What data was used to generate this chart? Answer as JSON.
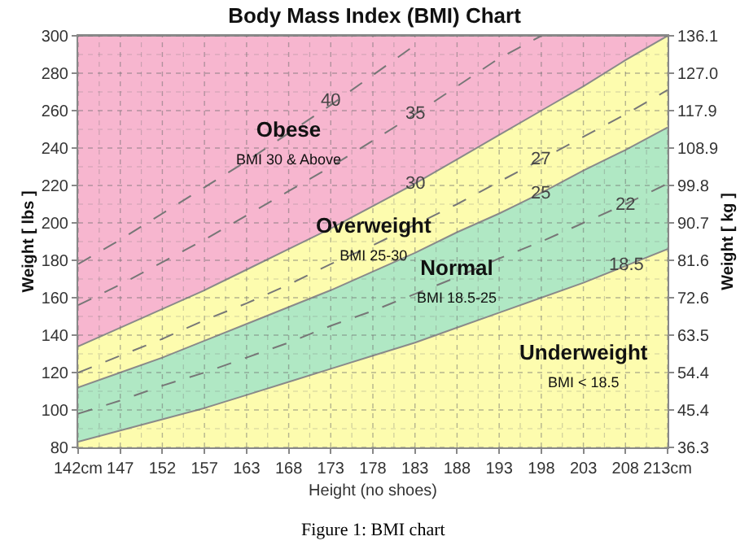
{
  "chart_data": {
    "type": "area",
    "title": "Body Mass Index (BMI) Chart",
    "xlabel": "Height (no shoes)",
    "ylabel": "Weight [ lbs ]",
    "y2label": "Weight [ kg ]",
    "categories": [
      "142cm",
      "147",
      "152",
      "157",
      "163",
      "168",
      "173",
      "178",
      "183",
      "188",
      "193",
      "198",
      "203",
      "208",
      "213cm"
    ],
    "series": [
      {
        "type": "area",
        "name": "Underweight\nBMI < 18.5",
        "color": "#fdfcae",
        "values": [
          83,
          89,
          95,
          101,
          108,
          115,
          122,
          129,
          136,
          144,
          152,
          160,
          168,
          177,
          186
        ]
      },
      {
        "type": "area",
        "name": "Normal\nBMI 18.5-25",
        "color": "#b0e8c4",
        "values": [
          112,
          120,
          128,
          137,
          146,
          155,
          164,
          174,
          184,
          195,
          205,
          216,
          228,
          239,
          251
        ]
      },
      {
        "type": "area",
        "name": "Overweight\nBMI 25-30",
        "color": "#fdfcae",
        "values": [
          134,
          144,
          154,
          164,
          175,
          186,
          197,
          209,
          221,
          234,
          247,
          260,
          273,
          287,
          300
        ]
      },
      {
        "type": "area",
        "name": "Obese\nBMI 30 & Above",
        "color": "#f7b6cf",
        "values": [
          300,
          300,
          300,
          300,
          300,
          300,
          300,
          300,
          300,
          300,
          300,
          300,
          300,
          300,
          300
        ]
      },
      {
        "type": "line",
        "color": "#777777",
        "line_style": "dashed",
        "values": [
          98,
          105,
          113,
          120,
          128,
          136,
          145,
          153,
          162,
          171,
          181,
          190,
          200,
          210,
          221
        ]
      },
      {
        "type": "line",
        "color": "#777777",
        "line_style": "dashed",
        "values": [
          120,
          129,
          138,
          148,
          157,
          167,
          178,
          188,
          199,
          210,
          222,
          234,
          246,
          258,
          271
        ]
      },
      {
        "type": "line",
        "color": "#777777",
        "line_style": "dashed",
        "values": [
          156,
          167,
          179,
          191,
          204,
          217,
          230,
          244,
          258,
          273,
          288,
          300,
          null,
          null,
          null
        ]
      },
      {
        "type": "line",
        "color": "#777777",
        "line_style": "dashed",
        "values": [
          178,
          191,
          205,
          219,
          233,
          248,
          263,
          279,
          295,
          null,
          null,
          null,
          null,
          null,
          null
        ]
      }
    ],
    "ylim": [
      80,
      300
    ],
    "yticks": [
      80,
      100,
      120,
      140,
      160,
      180,
      200,
      220,
      240,
      260,
      280,
      300
    ],
    "y2lim": [
      36.3,
      136.1
    ],
    "y2ticks": [
      36.3,
      45.4,
      54.4,
      63.5,
      72.6,
      81.6,
      90.7,
      99.8,
      108.9,
      117.9,
      {
        "value": 127,
        "label": "127.0"
      },
      136.1
    ],
    "grid": true,
    "legend": false,
    "marker": "none",
    "annotations": [
      {
        "text": "40",
        "x": "173",
        "y": 265
      },
      {
        "text": "35",
        "x": "183",
        "y": 258
      },
      {
        "text": "30",
        "x": "183",
        "y": 221
      },
      {
        "text": "27",
        "x": "198",
        "y": 234
      },
      {
        "text": "25",
        "x": "198",
        "y": 216
      },
      {
        "text": "22",
        "x": "208",
        "y": 210
      },
      {
        "text": "18.5",
        "x": "208",
        "y": 177
      },
      "Figure 1: BMI chart"
    ]
  }
}
